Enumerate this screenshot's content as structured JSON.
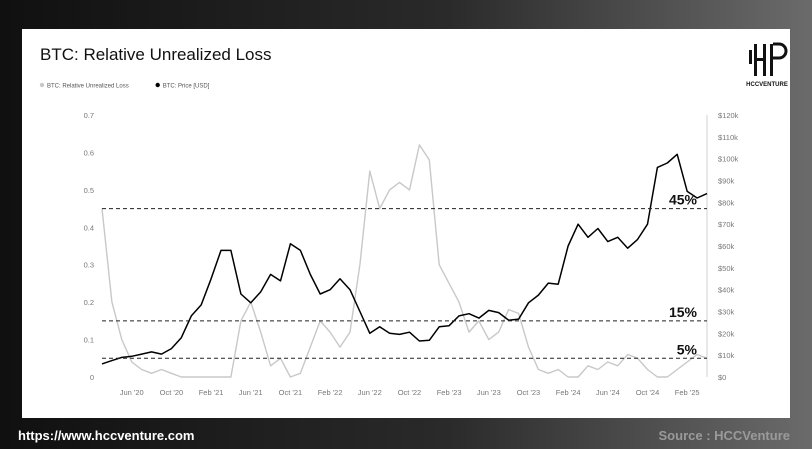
{
  "footer": {
    "url": "https://www.hccventure.com",
    "source": "Source : HCCVenture"
  },
  "logo": {
    "text": "HCCVENTURE"
  },
  "chart_data": {
    "type": "line",
    "title": "BTC: Relative Unrealized Loss",
    "legend": [
      {
        "name": "BTC: Relative Unrealized Loss",
        "color": "#c8c8c8"
      },
      {
        "name": "BTC: Price [USD]",
        "color": "#000000"
      }
    ],
    "legend_position": "top-left",
    "grid": false,
    "x_ticks": [
      "Jun '20",
      "Oct '20",
      "Feb '21",
      "Jun '21",
      "Oct '21",
      "Feb '22",
      "Jun '22",
      "Oct '22",
      "Feb '23",
      "Jun '23",
      "Oct '23",
      "Feb '24",
      "Jun '24",
      "Oct '24",
      "Feb '25"
    ],
    "y_left": {
      "ticks": [
        "0",
        "0.1",
        "0.2",
        "0.3",
        "0.4",
        "0.5",
        "0.6",
        "0.7"
      ],
      "range": [
        0,
        0.7
      ]
    },
    "y_right": {
      "ticks": [
        "$0",
        "$10k",
        "$20k",
        "$30k",
        "$40k",
        "$50k",
        "$60k",
        "$70k",
        "$80k",
        "$90k",
        "$100k",
        "$110k",
        "$120k"
      ],
      "range": [
        0,
        120000
      ]
    },
    "reference_lines": [
      {
        "label": "45%",
        "value": 0.45
      },
      {
        "label": "15%",
        "value": 0.15
      },
      {
        "label": "5%",
        "value": 0.05
      }
    ],
    "x_range": [
      "2020-03",
      "2025-04"
    ],
    "series": [
      {
        "name": "BTC: Price [USD]",
        "axis": "right",
        "x": [
          "2020-03",
          "2020-04",
          "2020-05",
          "2020-06",
          "2020-07",
          "2020-08",
          "2020-09",
          "2020-10",
          "2020-11",
          "2020-12",
          "2021-01",
          "2021-02",
          "2021-03",
          "2021-04",
          "2021-05",
          "2021-06",
          "2021-07",
          "2021-08",
          "2021-09",
          "2021-10",
          "2021-11",
          "2021-12",
          "2022-01",
          "2022-02",
          "2022-03",
          "2022-04",
          "2022-05",
          "2022-06",
          "2022-07",
          "2022-08",
          "2022-09",
          "2022-10",
          "2022-11",
          "2022-12",
          "2023-01",
          "2023-02",
          "2023-03",
          "2023-04",
          "2023-05",
          "2023-06",
          "2023-07",
          "2023-08",
          "2023-09",
          "2023-10",
          "2023-11",
          "2023-12",
          "2024-01",
          "2024-02",
          "2024-03",
          "2024-04",
          "2024-05",
          "2024-06",
          "2024-07",
          "2024-08",
          "2024-09",
          "2024-10",
          "2024-11",
          "2024-12",
          "2025-01",
          "2025-02",
          "2025-03",
          "2025-04"
        ],
        "values": [
          6000,
          7500,
          9000,
          9500,
          10500,
          11500,
          10500,
          13000,
          18000,
          28000,
          33000,
          45000,
          58000,
          58000,
          38000,
          34000,
          39000,
          47000,
          44000,
          61000,
          58000,
          47000,
          38000,
          40000,
          45000,
          40000,
          30000,
          20000,
          23000,
          20000,
          19500,
          20500,
          16500,
          16800,
          23000,
          23500,
          28000,
          29000,
          27000,
          30500,
          29500,
          26000,
          26500,
          34000,
          37500,
          43000,
          42500,
          60000,
          70000,
          64000,
          68000,
          62000,
          64000,
          59000,
          63000,
          70000,
          96000,
          98000,
          102000,
          85000,
          82000,
          84000
        ]
      },
      {
        "name": "BTC: Relative Unrealized Loss",
        "axis": "left",
        "x": [
          "2020-03",
          "2020-04",
          "2020-05",
          "2020-06",
          "2020-07",
          "2020-08",
          "2020-09",
          "2020-10",
          "2020-11",
          "2020-12",
          "2021-01",
          "2021-02",
          "2021-03",
          "2021-04",
          "2021-05",
          "2021-06",
          "2021-07",
          "2021-08",
          "2021-09",
          "2021-10",
          "2021-11",
          "2021-12",
          "2022-01",
          "2022-02",
          "2022-03",
          "2022-04",
          "2022-05",
          "2022-06",
          "2022-07",
          "2022-08",
          "2022-09",
          "2022-10",
          "2022-11",
          "2022-12",
          "2023-01",
          "2023-02",
          "2023-03",
          "2023-04",
          "2023-05",
          "2023-06",
          "2023-07",
          "2023-08",
          "2023-09",
          "2023-10",
          "2023-11",
          "2023-12",
          "2024-01",
          "2024-02",
          "2024-03",
          "2024-04",
          "2024-05",
          "2024-06",
          "2024-07",
          "2024-08",
          "2024-09",
          "2024-10",
          "2024-11",
          "2024-12",
          "2025-01",
          "2025-02",
          "2025-03",
          "2025-04"
        ],
        "values": [
          0.45,
          0.2,
          0.1,
          0.04,
          0.02,
          0.01,
          0.02,
          0.01,
          0.0,
          0.0,
          0.0,
          0.0,
          0.0,
          0.0,
          0.15,
          0.2,
          0.12,
          0.03,
          0.05,
          0.0,
          0.01,
          0.08,
          0.15,
          0.12,
          0.08,
          0.12,
          0.3,
          0.55,
          0.45,
          0.5,
          0.52,
          0.5,
          0.62,
          0.58,
          0.3,
          0.25,
          0.2,
          0.12,
          0.15,
          0.1,
          0.12,
          0.18,
          0.17,
          0.08,
          0.02,
          0.01,
          0.02,
          0.0,
          0.0,
          0.03,
          0.02,
          0.04,
          0.03,
          0.06,
          0.05,
          0.02,
          0.0,
          0.0,
          0.02,
          0.04,
          0.06,
          0.05
        ]
      }
    ]
  }
}
